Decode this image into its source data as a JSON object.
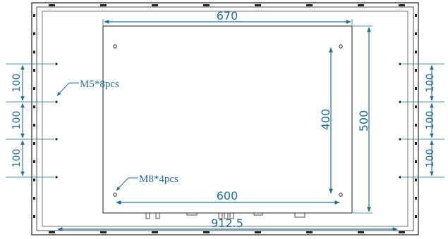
{
  "dimensions": {
    "mount_width": "670",
    "mount_height": "500",
    "inner_height": "400",
    "inner_width": "600",
    "overall_width": "912.5",
    "hole_pitch_left": [
      "100",
      "100",
      "100"
    ],
    "hole_pitch_right": [
      "100",
      "100",
      "100"
    ]
  },
  "annotations": {
    "m5": "M5*8pcs",
    "m8": "M8*4pcs"
  },
  "colors": {
    "dimension": "#1e6f9a",
    "outline": "#222222"
  }
}
